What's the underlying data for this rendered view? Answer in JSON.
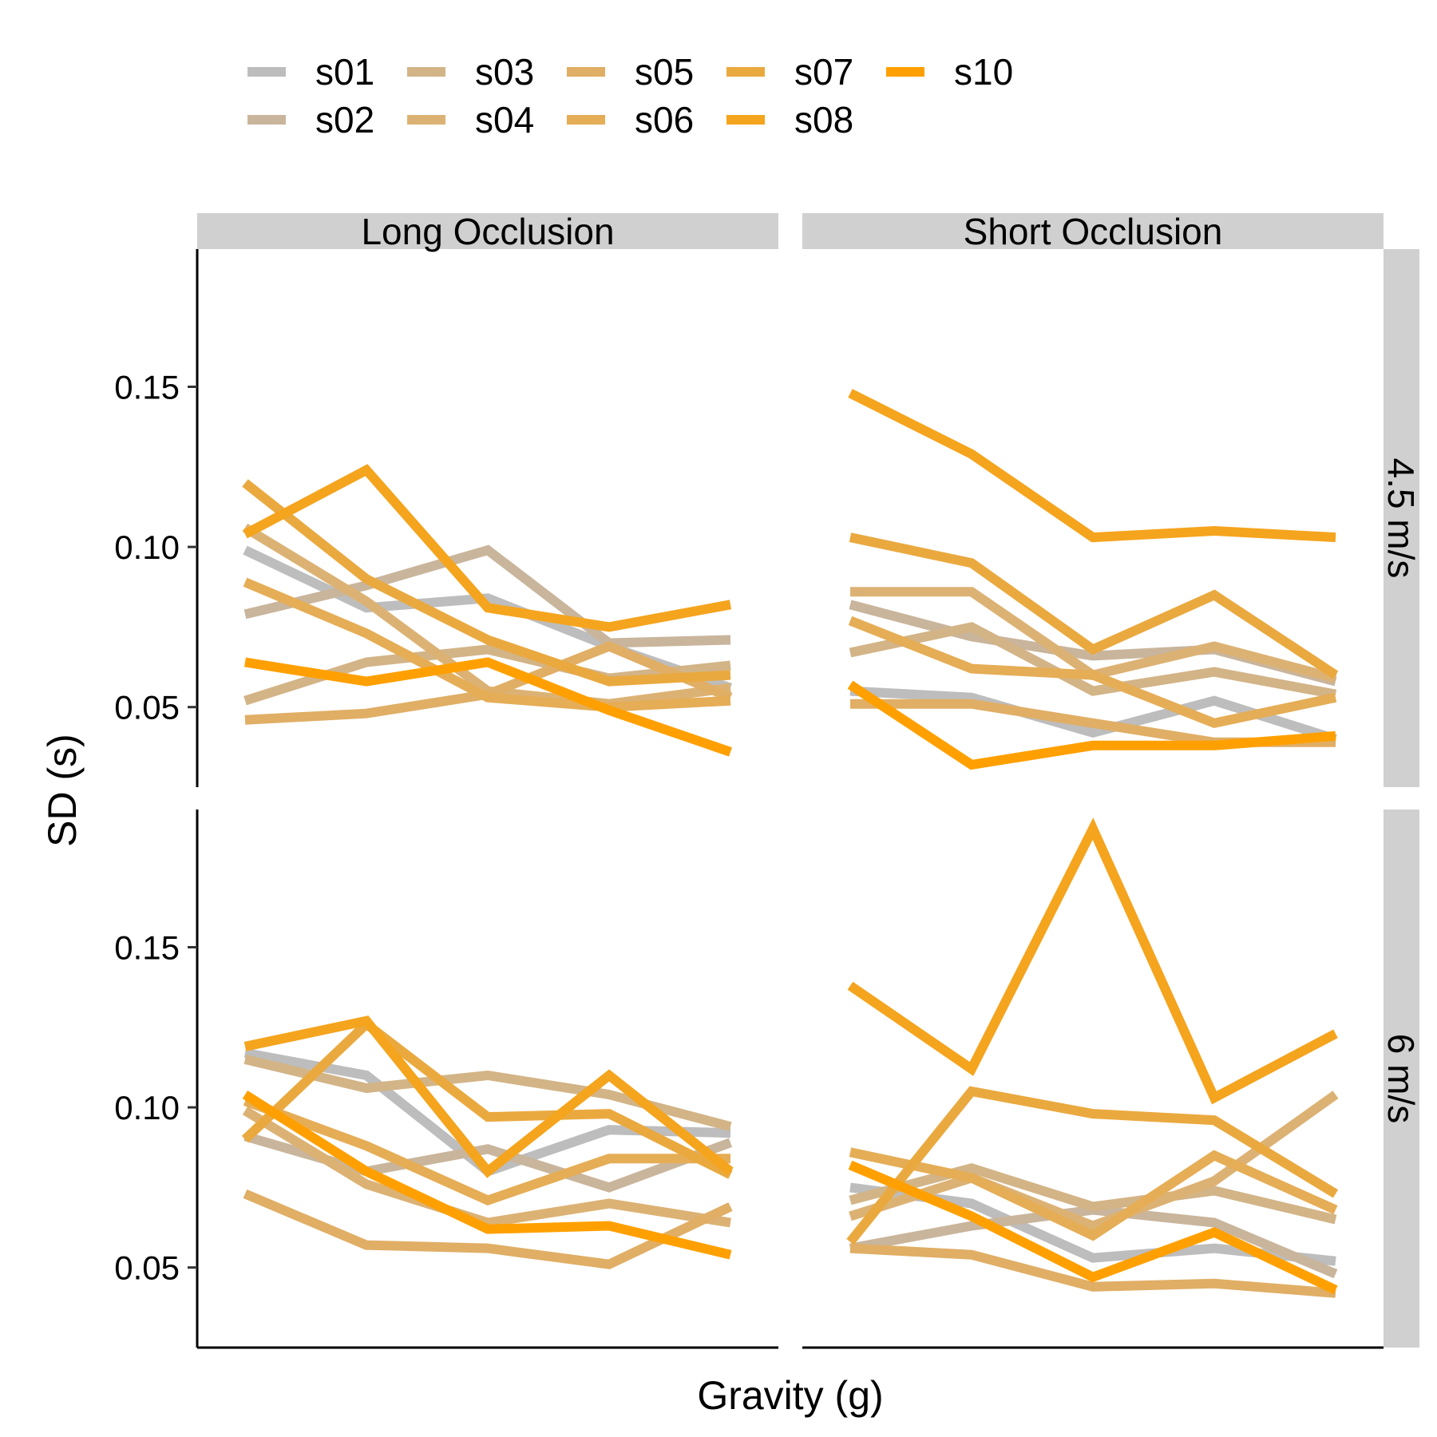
{
  "chart_data": {
    "type": "line",
    "xlabel": "Gravity (g)",
    "ylabel": "SD (s)",
    "x": [
      0.7,
      0.85,
      1.0,
      1.15,
      1.3
    ],
    "ylim": [
      0.025,
      0.193
    ],
    "yticks": [
      0.05,
      0.1,
      0.15
    ],
    "ytick_labels": [
      "0.05",
      "0.10",
      "0.15"
    ],
    "legend_position": "top",
    "grid": false,
    "columns": [
      "Long Occlusion",
      "Short Occlusion"
    ],
    "rows": [
      "4.5 m/s",
      "6 m/s"
    ],
    "series": [
      {
        "name": "s01",
        "color": "#bdbdbd"
      },
      {
        "name": "s02",
        "color": "#c9b59c"
      },
      {
        "name": "s03",
        "color": "#d2b487"
      },
      {
        "name": "s04",
        "color": "#dcb274"
      },
      {
        "name": "s05",
        "color": "#e0ae65"
      },
      {
        "name": "s06",
        "color": "#e5ad56"
      },
      {
        "name": "s07",
        "color": "#eaa93f"
      },
      {
        "name": "s08",
        "color": "#f5a41e"
      },
      {
        "name": "s10",
        "color": "#ffa000"
      }
    ],
    "panels": [
      {
        "col": 0,
        "row": 0,
        "lines": [
          {
            "series": "s01",
            "values": [
              0.099,
              0.081,
              0.084,
              0.069,
              0.056
            ]
          },
          {
            "series": "s02",
            "values": [
              0.079,
              0.088,
              0.099,
              0.07,
              0.071
            ]
          },
          {
            "series": "s03",
            "values": [
              0.052,
              0.064,
              0.068,
              0.059,
              0.063
            ]
          },
          {
            "series": "s04",
            "values": [
              0.106,
              0.083,
              0.055,
              0.051,
              0.056
            ]
          },
          {
            "series": "s05",
            "values": [
              0.046,
              0.048,
              0.054,
              0.069,
              0.053
            ]
          },
          {
            "series": "s06",
            "values": [
              0.089,
              0.073,
              0.053,
              0.05,
              0.052
            ]
          },
          {
            "series": "s07",
            "values": [
              0.12,
              0.09,
              0.071,
              0.058,
              0.06
            ]
          },
          {
            "series": "s08",
            "values": [
              0.104,
              0.124,
              0.081,
              0.075,
              0.082
            ]
          },
          {
            "series": "s10",
            "values": [
              0.064,
              0.058,
              0.064,
              0.049,
              0.036
            ]
          }
        ]
      },
      {
        "col": 1,
        "row": 0,
        "lines": [
          {
            "series": "s01",
            "values": [
              0.055,
              0.053,
              0.042,
              0.052,
              0.04
            ]
          },
          {
            "series": "s02",
            "values": [
              0.082,
              0.072,
              0.066,
              0.068,
              0.058
            ]
          },
          {
            "series": "s03",
            "values": [
              0.067,
              0.075,
              0.055,
              0.061,
              0.054
            ]
          },
          {
            "series": "s04",
            "values": [
              0.086,
              0.086,
              0.06,
              0.069,
              0.059
            ]
          },
          {
            "series": "s05",
            "values": [
              0.051,
              0.051,
              0.045,
              0.039,
              0.039
            ]
          },
          {
            "series": "s06",
            "values": [
              0.077,
              0.062,
              0.06,
              0.045,
              0.053
            ]
          },
          {
            "series": "s07",
            "values": [
              0.103,
              0.095,
              0.068,
              0.085,
              0.06
            ]
          },
          {
            "series": "s08",
            "values": [
              0.148,
              0.129,
              0.103,
              0.105,
              0.103
            ]
          },
          {
            "series": "s10",
            "values": [
              0.057,
              0.032,
              0.038,
              0.038,
              0.041
            ]
          }
        ]
      },
      {
        "col": 0,
        "row": 1,
        "lines": [
          {
            "series": "s01",
            "values": [
              0.117,
              0.11,
              0.08,
              0.093,
              0.092
            ]
          },
          {
            "series": "s02",
            "values": [
              0.091,
              0.08,
              0.087,
              0.075,
              0.089
            ]
          },
          {
            "series": "s03",
            "values": [
              0.115,
              0.106,
              0.11,
              0.104,
              0.094
            ]
          },
          {
            "series": "s04",
            "values": [
              0.099,
              0.076,
              0.064,
              0.07,
              0.064
            ]
          },
          {
            "series": "s05",
            "values": [
              0.073,
              0.057,
              0.056,
              0.051,
              0.069
            ]
          },
          {
            "series": "s06",
            "values": [
              0.102,
              0.088,
              0.071,
              0.084,
              0.084
            ]
          },
          {
            "series": "s07",
            "values": [
              0.09,
              0.126,
              0.097,
              0.098,
              0.079
            ]
          },
          {
            "series": "s08",
            "values": [
              0.119,
              0.127,
              0.08,
              0.11,
              0.08
            ]
          },
          {
            "series": "s10",
            "values": [
              0.104,
              0.08,
              0.062,
              0.063,
              0.054
            ]
          }
        ]
      },
      {
        "col": 1,
        "row": 1,
        "lines": [
          {
            "series": "s01",
            "values": [
              0.075,
              0.07,
              0.053,
              0.056,
              0.052
            ]
          },
          {
            "series": "s02",
            "values": [
              0.056,
              0.063,
              0.068,
              0.064,
              0.048
            ]
          },
          {
            "series": "s03",
            "values": [
              0.071,
              0.081,
              0.069,
              0.074,
              0.065
            ]
          },
          {
            "series": "s04",
            "values": [
              0.066,
              0.078,
              0.063,
              0.077,
              0.104
            ]
          },
          {
            "series": "s05",
            "values": [
              0.056,
              0.054,
              0.044,
              0.045,
              0.042
            ]
          },
          {
            "series": "s06",
            "values": [
              0.086,
              0.078,
              0.06,
              0.085,
              0.068
            ]
          },
          {
            "series": "s07",
            "values": [
              0.058,
              0.105,
              0.098,
              0.096,
              0.073
            ]
          },
          {
            "series": "s08",
            "values": [
              0.138,
              0.112,
              0.187,
              0.103,
              0.123
            ]
          },
          {
            "series": "s10",
            "values": [
              0.082,
              0.066,
              0.047,
              0.061,
              0.043
            ]
          }
        ]
      }
    ]
  }
}
